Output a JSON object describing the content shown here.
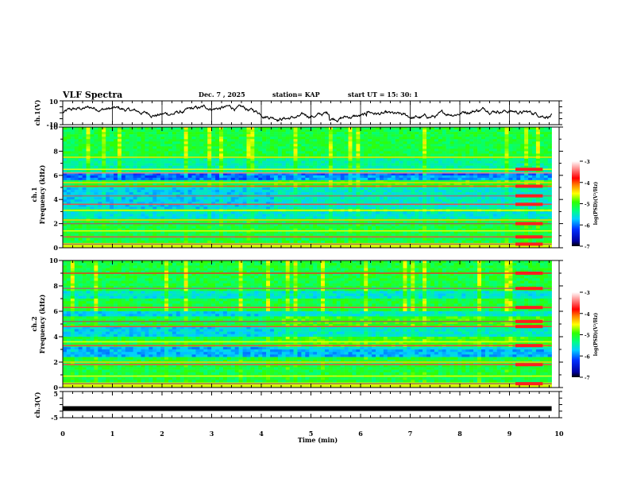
{
  "header": {
    "title": "VLF Spectra",
    "date": "Dec. 7  , 2025",
    "station": "station= KAP",
    "start": "start  UT =   15: 30: 1"
  },
  "chart_data": [
    {
      "type": "line",
      "name": "ch1-waveform",
      "ylabel": "ch.1(V)",
      "ylim": [
        -10,
        10
      ],
      "yticks": [
        "10",
        "-10"
      ],
      "xlim": [
        0,
        10
      ],
      "description_values": "noisy waveform roughly between -8 and 6 V"
    },
    {
      "type": "heatmap",
      "name": "ch1-spectrogram",
      "ylabel_channel": "ch.1",
      "ylabel": "Frequency  (kHz)",
      "ylim": [
        0,
        10
      ],
      "yticks": [
        "0",
        "2",
        "4",
        "6",
        "8",
        "10"
      ],
      "xlim": [
        0,
        10
      ],
      "colorbar": {
        "label": "log(PSD)(V²/Hz)",
        "range": [
          -7,
          -3
        ],
        "ticks": [
          "-3",
          "-4",
          "-5",
          "-6",
          "-7"
        ]
      }
    },
    {
      "type": "heatmap",
      "name": "ch2-spectrogram",
      "ylabel_channel": "ch.2",
      "ylabel": "Frequency  (kHz)",
      "ylim": [
        0,
        10
      ],
      "yticks": [
        "0",
        "2",
        "4",
        "6",
        "8",
        "10"
      ],
      "xlim": [
        0,
        10
      ],
      "colorbar": {
        "label": "log(PSD)(V²/Hz)",
        "range": [
          -7,
          -3
        ],
        "ticks": [
          "-3",
          "-4",
          "-5",
          "-6",
          "-7"
        ]
      }
    },
    {
      "type": "line",
      "name": "ch3-waveform",
      "ylabel": "ch.3(V)",
      "ylim": [
        -5,
        5
      ],
      "yticks": [
        "5",
        "-5"
      ],
      "level": -1.5,
      "xlim": [
        0,
        10
      ],
      "xlabel": "Time  (min)",
      "xticks": [
        "0",
        "1",
        "2",
        "3",
        "4",
        "5",
        "6",
        "7",
        "8",
        "9",
        "10"
      ]
    }
  ],
  "colors": {
    "axis": "#000000",
    "line": "#000000"
  }
}
